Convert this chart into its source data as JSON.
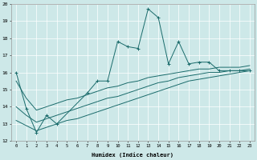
{
  "xlabel": "Humidex (Indice chaleur)",
  "background_color": "#cde8e8",
  "line_color": "#1a6b6b",
  "xlim": [
    -0.5,
    23.5
  ],
  "ylim": [
    12,
    20
  ],
  "yticks": [
    12,
    13,
    14,
    15,
    16,
    17,
    18,
    19,
    20
  ],
  "xticks": [
    0,
    1,
    2,
    3,
    4,
    5,
    6,
    7,
    8,
    9,
    10,
    11,
    12,
    13,
    14,
    15,
    16,
    17,
    18,
    19,
    20,
    21,
    22,
    23
  ],
  "series1_x": [
    0,
    1,
    2,
    3,
    4,
    7,
    8,
    9,
    10,
    11,
    12,
    13,
    14,
    15,
    16,
    17,
    18,
    19,
    20,
    21,
    22,
    23
  ],
  "series1_y": [
    16.0,
    13.9,
    12.5,
    13.5,
    13.0,
    14.8,
    15.5,
    15.5,
    17.8,
    17.5,
    17.4,
    19.7,
    19.2,
    16.5,
    17.8,
    16.5,
    16.6,
    16.6,
    16.1,
    16.1,
    16.1,
    16.1
  ],
  "series1_markers": true,
  "smooth1_x": [
    0,
    1,
    2,
    3,
    4,
    5,
    6,
    7,
    8,
    9,
    10,
    11,
    12,
    13,
    14,
    15,
    16,
    17,
    18,
    19,
    20,
    21,
    22,
    23
  ],
  "smooth1_y": [
    13.2,
    12.9,
    12.6,
    12.8,
    13.0,
    13.2,
    13.3,
    13.5,
    13.7,
    13.9,
    14.1,
    14.3,
    14.5,
    14.7,
    14.9,
    15.1,
    15.3,
    15.5,
    15.6,
    15.7,
    15.8,
    15.9,
    16.0,
    16.1
  ],
  "smooth2_x": [
    0,
    1,
    2,
    3,
    4,
    5,
    6,
    7,
    8,
    9,
    10,
    11,
    12,
    13,
    14,
    15,
    16,
    17,
    18,
    19,
    20,
    21,
    22,
    23
  ],
  "smooth2_y": [
    14.0,
    13.5,
    13.1,
    13.3,
    13.5,
    13.7,
    13.9,
    14.1,
    14.3,
    14.5,
    14.6,
    14.8,
    15.0,
    15.2,
    15.4,
    15.5,
    15.7,
    15.8,
    15.9,
    16.0,
    16.0,
    16.1,
    16.1,
    16.2
  ],
  "smooth3_x": [
    0,
    1,
    2,
    3,
    4,
    5,
    6,
    7,
    8,
    9,
    10,
    11,
    12,
    13,
    14,
    15,
    16,
    17,
    18,
    19,
    20,
    21,
    22,
    23
  ],
  "smooth3_y": [
    15.5,
    14.5,
    13.8,
    14.0,
    14.2,
    14.4,
    14.5,
    14.7,
    14.9,
    15.1,
    15.2,
    15.4,
    15.5,
    15.7,
    15.8,
    15.9,
    16.0,
    16.1,
    16.2,
    16.2,
    16.3,
    16.3,
    16.3,
    16.4
  ]
}
